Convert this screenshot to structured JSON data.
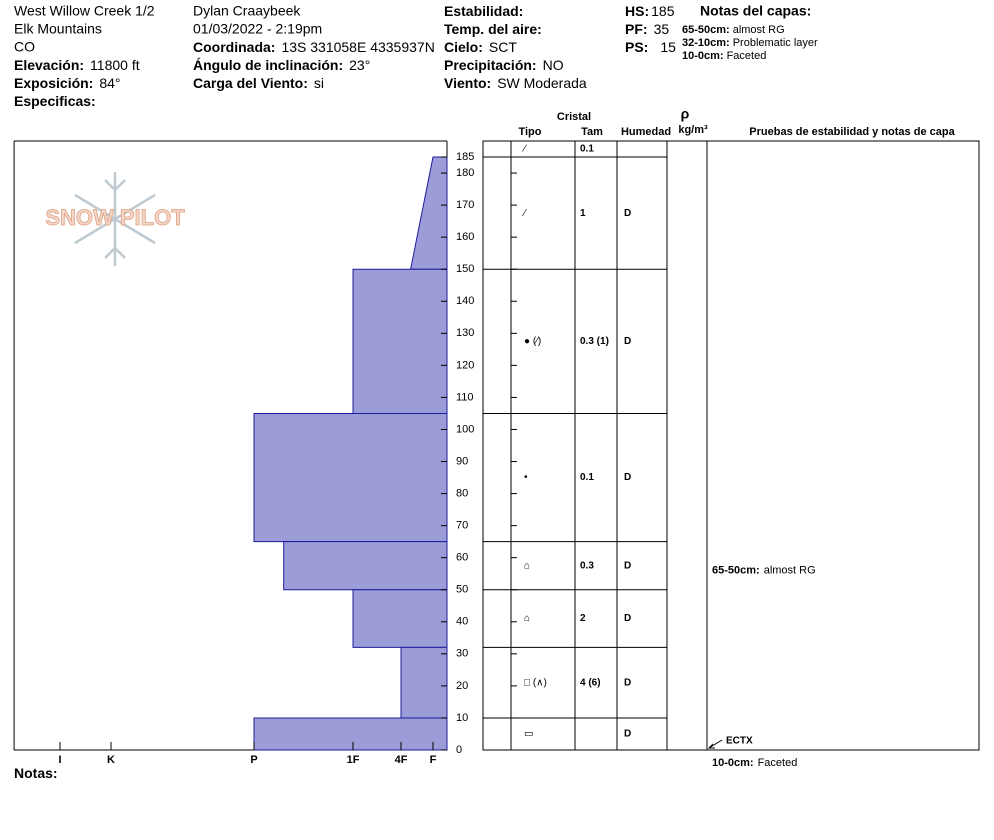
{
  "header": {
    "site": "West Willow Creek 1/2",
    "range": "Elk Mountains",
    "state": "CO",
    "elevation": {
      "label": "Elevación:",
      "value": "11800 ft"
    },
    "aspect": {
      "label": "Exposición:",
      "value": "84°"
    },
    "specifics": {
      "label": "Especificas:"
    },
    "observer": "Dylan Craaybeek",
    "datetime": "01/03/2022 - 2:19pm",
    "coordinate": {
      "label": "Coordinada:",
      "value": "13S 331058E 4335937N"
    },
    "slope": {
      "label": "Ángulo de inclinación:",
      "value": "23°"
    },
    "wind_load": {
      "label": "Carga del Viento:",
      "value": "si"
    },
    "stability": {
      "label": "Estabilidad:"
    },
    "air_temp": {
      "label": "Temp. del aire:"
    },
    "sky": {
      "label": "Cielo:",
      "value": "SCT"
    },
    "precip": {
      "label": "Precipitación:",
      "value": "NO"
    },
    "wind": {
      "label": "Viento:",
      "value": "SW Moderada"
    },
    "hs": {
      "label": "HS:",
      "value": "185"
    },
    "pf": {
      "label": "PF:",
      "value": "35"
    },
    "ps": {
      "label": "PS:",
      "value": "15"
    },
    "layer_notes": {
      "title": "Notas del capas:",
      "items": [
        {
          "label": "65-50cm:",
          "value": "almost RG"
        },
        {
          "label": "32-10cm:",
          "value": "Problematic layer"
        },
        {
          "label": "10-0cm:",
          "value": "Faceted"
        }
      ]
    }
  },
  "logo": "SNOW PILOT",
  "chart_data": {
    "type": "snow-profile",
    "ylim": [
      0,
      190
    ],
    "yticks": [
      0,
      10,
      20,
      30,
      40,
      50,
      60,
      70,
      80,
      90,
      100,
      110,
      120,
      130,
      140,
      150,
      160,
      170,
      180,
      185
    ],
    "xlim": [
      0,
      6.9
    ],
    "xticks": [
      {
        "value": 6,
        "label": "I"
      },
      {
        "value": 5,
        "label": "K"
      },
      {
        "value": 4,
        "label": "P"
      },
      {
        "value": 3,
        "label": "1F"
      },
      {
        "value": 2,
        "label": "4F"
      },
      {
        "value": 1,
        "label": "F"
      }
    ],
    "color": "#9c9cd8",
    "edge_color": "#1c1c9c",
    "layers": [
      {
        "top": 185,
        "bottom": 150,
        "hardness_top": 1,
        "hardness_bottom": 1.7
      },
      {
        "top": 150,
        "bottom": 105,
        "hardness_top": 3,
        "hardness_bottom": 3
      },
      {
        "top": 105,
        "bottom": 65,
        "hardness_top": 4,
        "hardness_bottom": 4
      },
      {
        "top": 65,
        "bottom": 50,
        "hardness_top": 3.7,
        "hardness_bottom": 3.7
      },
      {
        "top": 50,
        "bottom": 32,
        "hardness_top": 3,
        "hardness_bottom": 3
      },
      {
        "top": 32,
        "bottom": 10,
        "hardness_top": 2,
        "hardness_bottom": 2
      },
      {
        "top": 10,
        "bottom": 0,
        "hardness_top": 4,
        "hardness_bottom": 4
      }
    ],
    "table": {
      "crystal": "Cristal",
      "columns": [
        "Tipo",
        "Tam",
        "Humedad"
      ],
      "density": "ρ",
      "density_unit": "kg/m³",
      "tests_title": "Pruebas de estabilidad y notas de capa",
      "rows": [
        {
          "top": 190,
          "bottom": 185,
          "type": "⁄",
          "size": "0.1",
          "moisture": null
        },
        {
          "top": 185,
          "bottom": 150,
          "type": "⁄",
          "size": "1",
          "moisture": "D"
        },
        {
          "top": 150,
          "bottom": 105,
          "type": "● (⁄)",
          "size": "0.3 (1)",
          "moisture": "D"
        },
        {
          "top": 105,
          "bottom": 65,
          "type": "•",
          "size": "0.1",
          "moisture": "D"
        },
        {
          "top": 65,
          "bottom": 50,
          "type": "⌂",
          "size": "0.3",
          "moisture": "D"
        },
        {
          "top": 50,
          "bottom": 32,
          "type": "⌂",
          "size": "2",
          "moisture": "D"
        },
        {
          "top": 32,
          "bottom": 10,
          "type": "□ (∧)",
          "size": "4 (6)",
          "moisture": "D"
        },
        {
          "top": 10,
          "bottom": 0,
          "type": "▭",
          "size": null,
          "moisture": "D"
        }
      ]
    },
    "layer_comments": [
      {
        "top": 65,
        "bottom": 50,
        "label": "65-50cm:",
        "value": "almost RG"
      }
    ],
    "stability_tests": [
      {
        "depth": 0,
        "label": "ECTX"
      }
    ],
    "bottom_comment": {
      "label": "10-0cm:",
      "value": "Faceted"
    }
  },
  "notes": {
    "label": "Notas:"
  }
}
